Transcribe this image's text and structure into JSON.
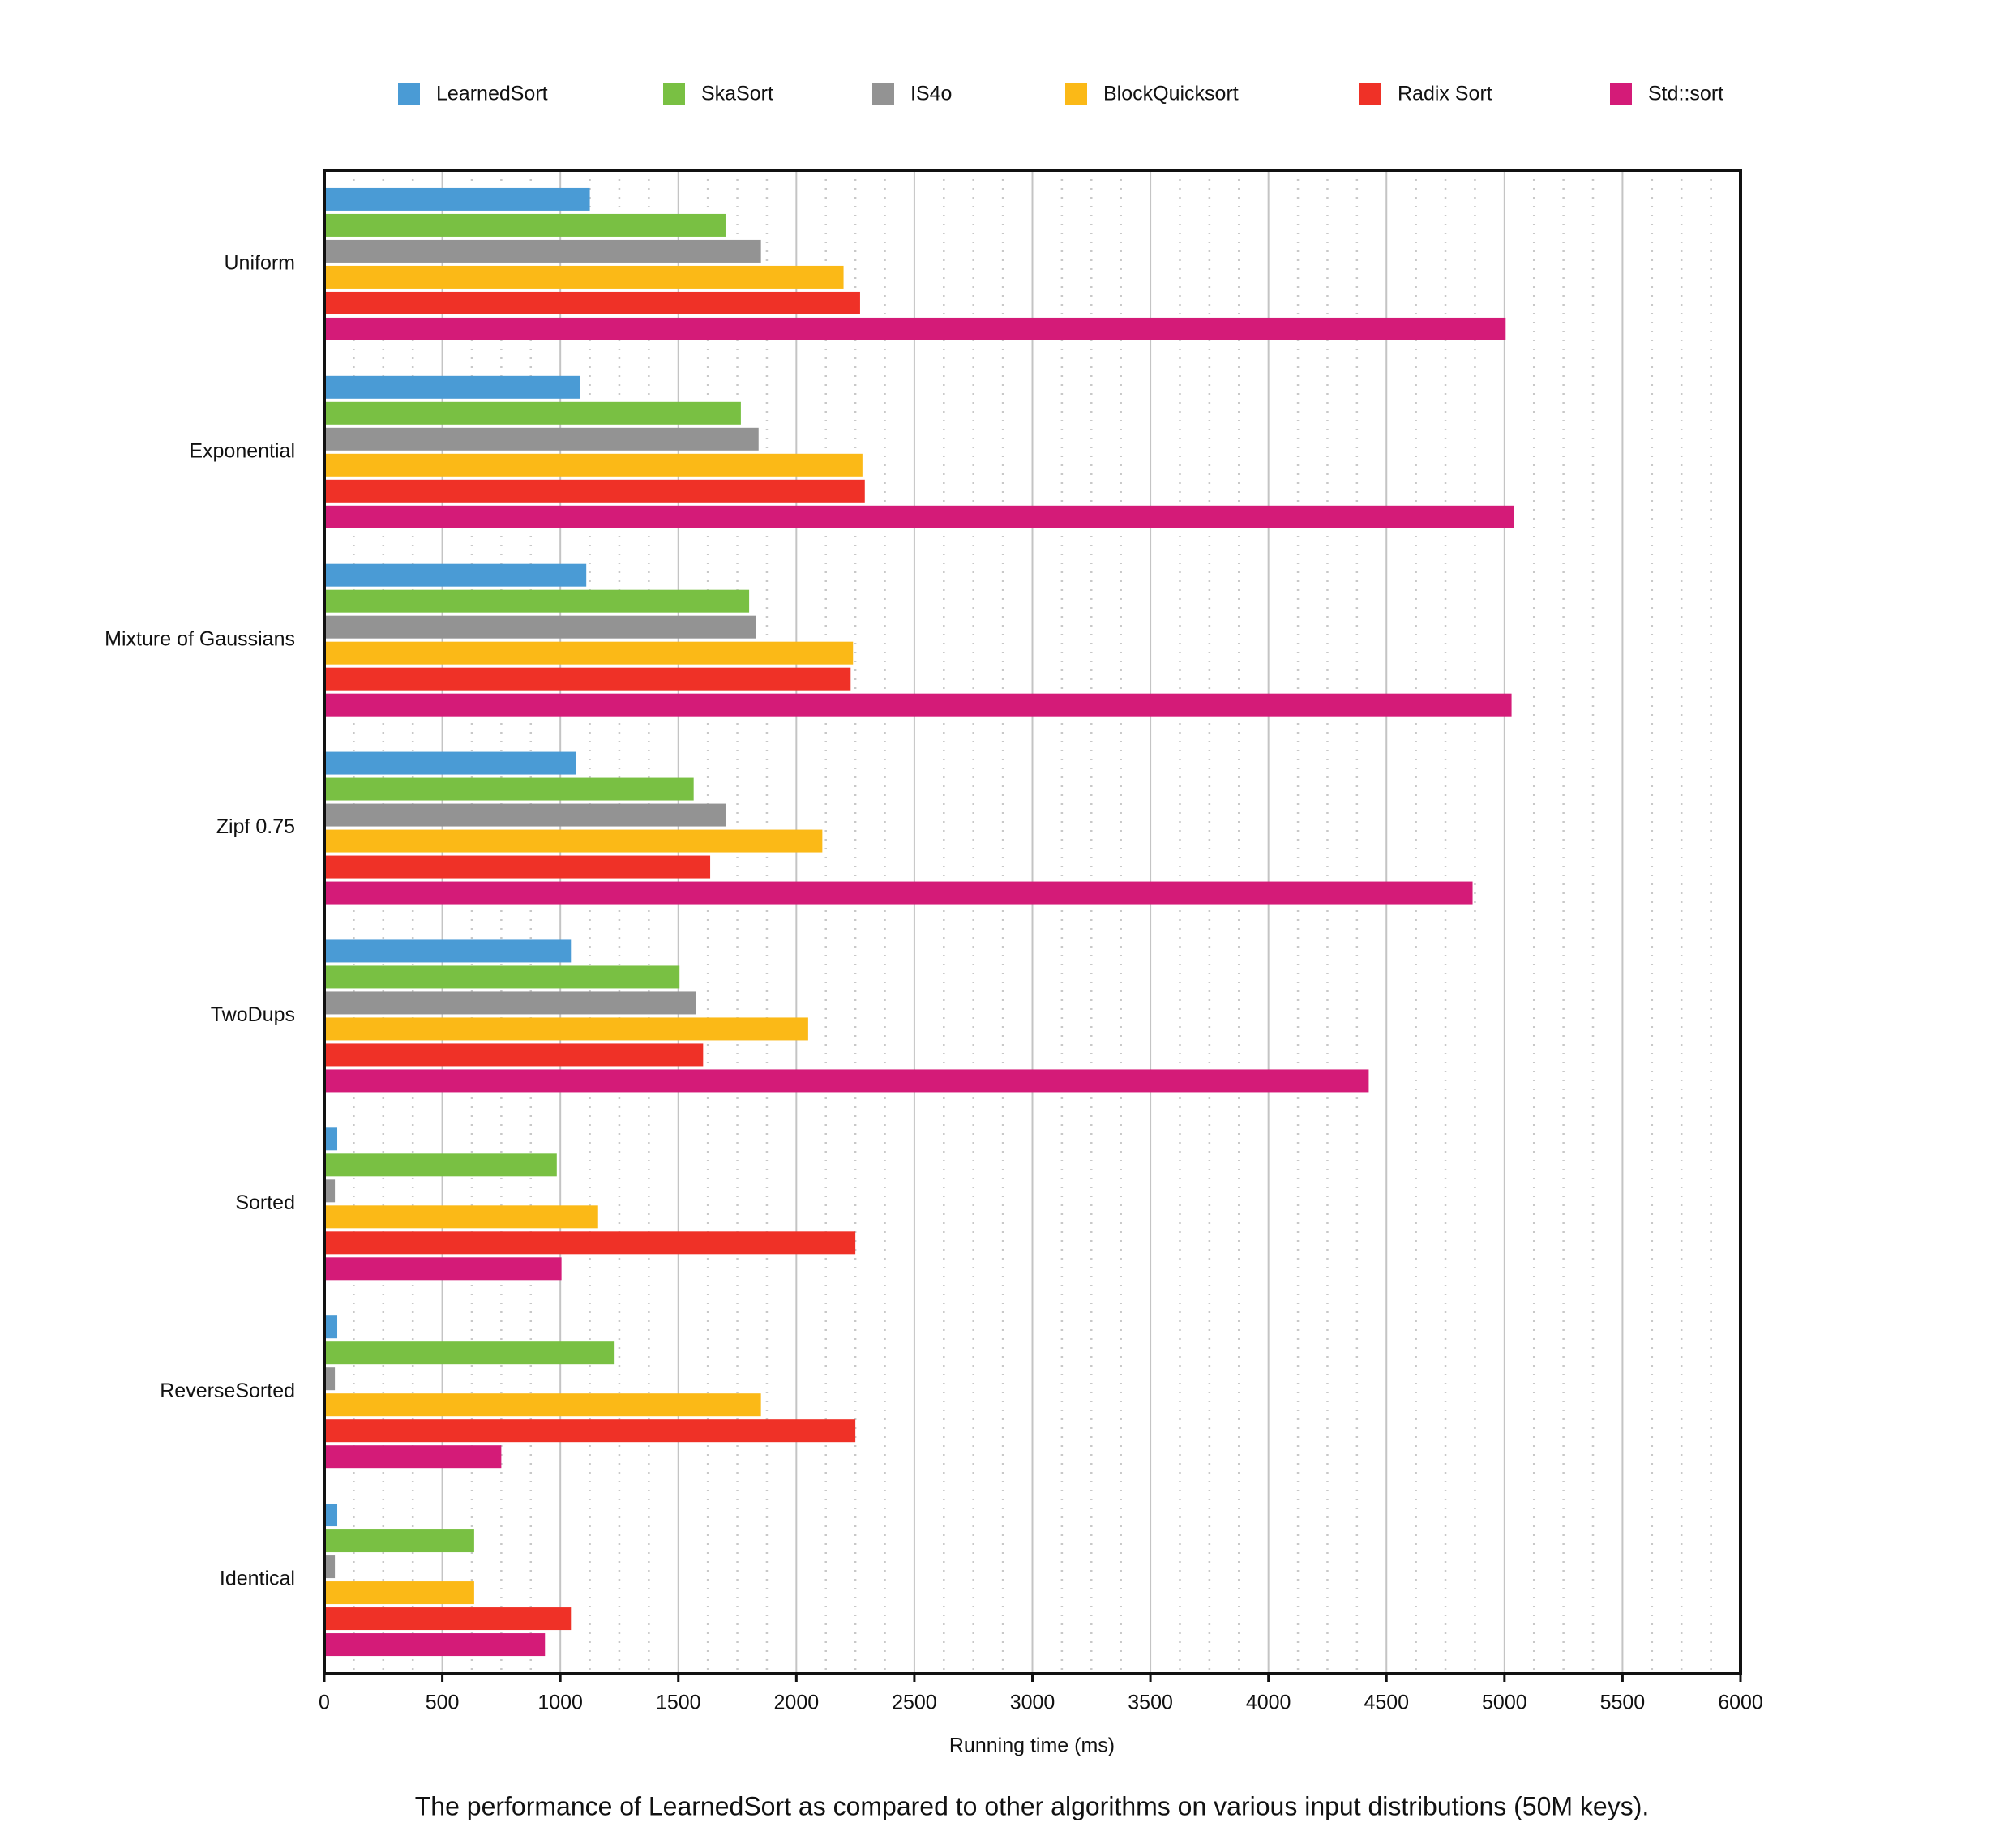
{
  "chart_data": {
    "type": "hbar",
    "caption": "The performance of LearnedSort as compared to other algorithms on various input distributions (50M keys).",
    "x_label": "Running time (ms)",
    "categories": [
      "Uniform",
      "Exponential",
      "Mixture of Gaussians",
      "Zipf 0.75",
      "TwoDups",
      "Sorted",
      "ReverseSorted",
      "Identical"
    ],
    "series": [
      {
        "name": "LearnedSort",
        "color": "#4a9bd5",
        "values": [
          1125,
          1085,
          1110,
          1065,
          1045,
          55,
          55,
          55
        ]
      },
      {
        "name": "SkaSort",
        "color": "#79c043",
        "values": [
          1700,
          1765,
          1800,
          1565,
          1505,
          985,
          1230,
          635
        ]
      },
      {
        "name": "IS4o",
        "color": "#939393",
        "values": [
          1850,
          1840,
          1830,
          1700,
          1575,
          45,
          45,
          45
        ]
      },
      {
        "name": "BlockQuicksort",
        "color": "#fbb917",
        "values": [
          2200,
          2280,
          2240,
          2110,
          2050,
          1160,
          1850,
          635
        ]
      },
      {
        "name": "Radix Sort",
        "color": "#ef3127",
        "values": [
          2270,
          2290,
          2230,
          1635,
          1605,
          2250,
          2250,
          1045
        ]
      },
      {
        "name": "Std::sort",
        "color": "#d41b78",
        "values": [
          5005,
          5040,
          5030,
          4865,
          4425,
          1005,
          750,
          935
        ]
      }
    ],
    "xlim": [
      0,
      6000
    ],
    "xticks": [
      0,
      500,
      1000,
      1500,
      2000,
      2500,
      3000,
      3500,
      4000,
      4500,
      5000,
      5500,
      6000
    ],
    "grid": true,
    "minor_grid": true,
    "legend": "top"
  }
}
